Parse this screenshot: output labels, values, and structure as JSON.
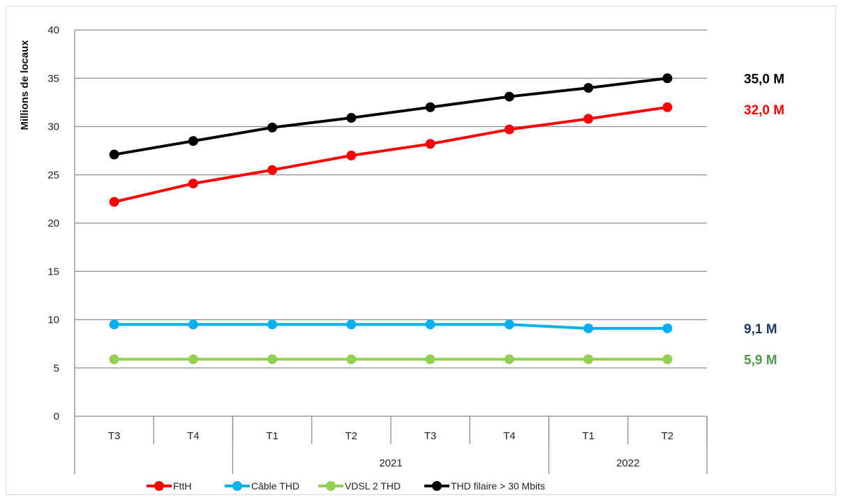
{
  "chart_data": {
    "type": "line",
    "title": "",
    "ylabel": "Millions de locaux",
    "xlabel": "",
    "ylim": [
      0,
      40
    ],
    "ytick_step": 5,
    "grid": "horizontal",
    "legend_position": "bottom",
    "categories": [
      "T3",
      "T4",
      "T1",
      "T2",
      "T3",
      "T4",
      "T1",
      "T2"
    ],
    "year_groups": [
      {
        "label": "",
        "start": 0,
        "end": 1
      },
      {
        "label": "2021",
        "start": 2,
        "end": 5
      },
      {
        "label": "2022",
        "start": 6,
        "end": 7
      }
    ],
    "series": [
      {
        "name": "FttH",
        "color": "#ff0000",
        "values": [
          22.2,
          24.1,
          25.5,
          27.0,
          28.2,
          29.7,
          30.8,
          32.0
        ],
        "end_label": "32,0 M",
        "end_label_color": "#ff0000"
      },
      {
        "name": "Câble THD",
        "color": "#00b0f0",
        "values": [
          9.5,
          9.5,
          9.5,
          9.5,
          9.5,
          9.5,
          9.1,
          9.1
        ],
        "end_label": "9,1 M",
        "end_label_color": "#1f3864"
      },
      {
        "name": "VDSL 2 THD",
        "color": "#92d050",
        "values": [
          5.9,
          5.9,
          5.9,
          5.9,
          5.9,
          5.9,
          5.9,
          5.9
        ],
        "end_label": "5,9 M",
        "end_label_color": "#4f9a4a"
      },
      {
        "name": "THD filaire > 30 Mbits",
        "color": "#000000",
        "values": [
          27.1,
          28.5,
          29.9,
          30.9,
          32.0,
          33.1,
          34.0,
          35.0
        ],
        "end_label": "35,0 M",
        "end_label_color": "#000000"
      }
    ]
  }
}
